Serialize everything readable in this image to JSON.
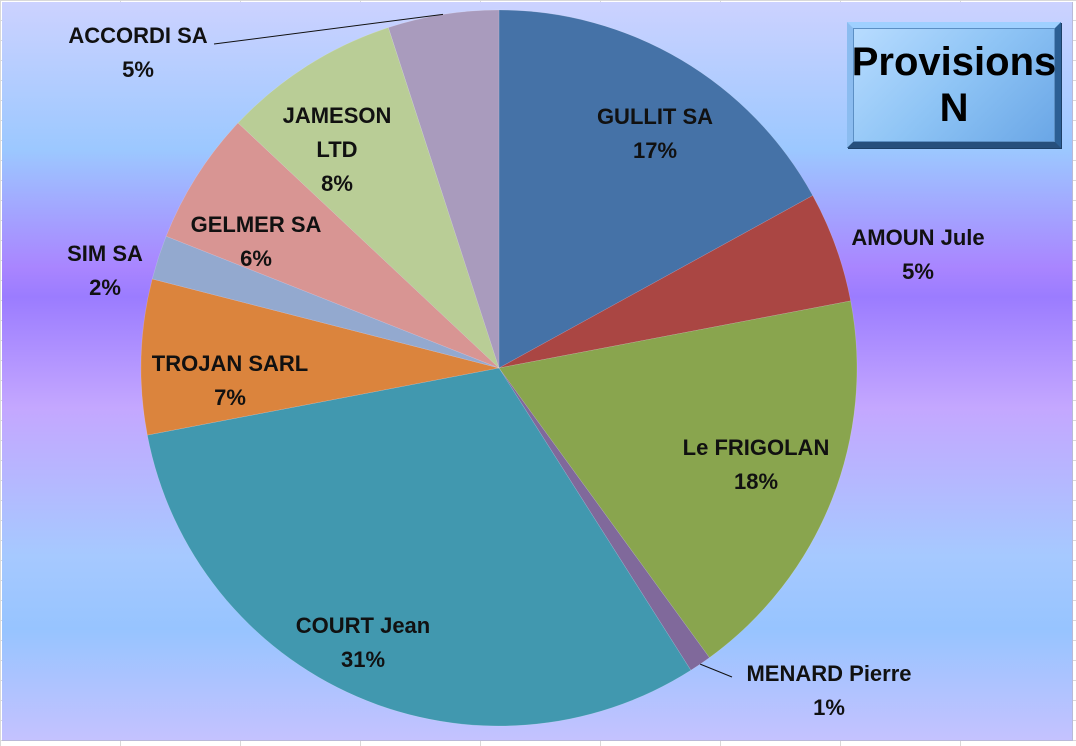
{
  "chart_data": {
    "type": "pie",
    "title": "Provisions N",
    "slices": [
      {
        "label": "GULLIT SA",
        "value": 17,
        "display": "17%",
        "color": "#4572a7"
      },
      {
        "label": "AMOUN Jule",
        "value": 5,
        "display": "5%",
        "color": "#aa4643"
      },
      {
        "label": "Le FRIGOLAN",
        "value": 18,
        "display": "18%",
        "color": "#89a54e"
      },
      {
        "label": "MENARD Pierre",
        "value": 1,
        "display": "1%",
        "color": "#80699b"
      },
      {
        "label": "COURT Jean",
        "value": 31,
        "display": "31%",
        "color": "#4198af"
      },
      {
        "label": "TROJAN SARL",
        "value": 7,
        "display": "7%",
        "color": "#db843d"
      },
      {
        "label": "SIM SA",
        "value": 2,
        "display": "2%",
        "color": "#93a9cf"
      },
      {
        "label": "GELMER SA",
        "value": 6,
        "display": "6%",
        "color": "#d89593"
      },
      {
        "label": "JAMESON LTD",
        "value": 8,
        "display": "8%",
        "color": "#b9cd96"
      },
      {
        "label": "ACCORDI SA",
        "value": 5,
        "display": "5%",
        "color": "#a99bbd"
      }
    ],
    "start_angle_deg": 0,
    "direction": "clockwise",
    "legend": "none",
    "data_labels": true
  },
  "title_box": {
    "line1": "Provisions",
    "line2": "N"
  },
  "labels": [
    {
      "name": "GULLIT SA",
      "pct": "17%"
    },
    {
      "name": "AMOUN Jule",
      "pct": "5%"
    },
    {
      "name": "Le FRIGOLAN",
      "pct": "18%"
    },
    {
      "name": "MENARD Pierre",
      "pct": "1%"
    },
    {
      "name": "COURT Jean",
      "pct": "31%"
    },
    {
      "name": "TROJAN SARL",
      "pct": "7%"
    },
    {
      "name": "SIM SA",
      "pct": "2%"
    },
    {
      "name": "GELMER SA",
      "pct": "6%"
    },
    {
      "name_line1": "JAMESON",
      "name_line2": "LTD",
      "pct": "8%"
    },
    {
      "name": "ACCORDI SA",
      "pct": "5%"
    }
  ]
}
